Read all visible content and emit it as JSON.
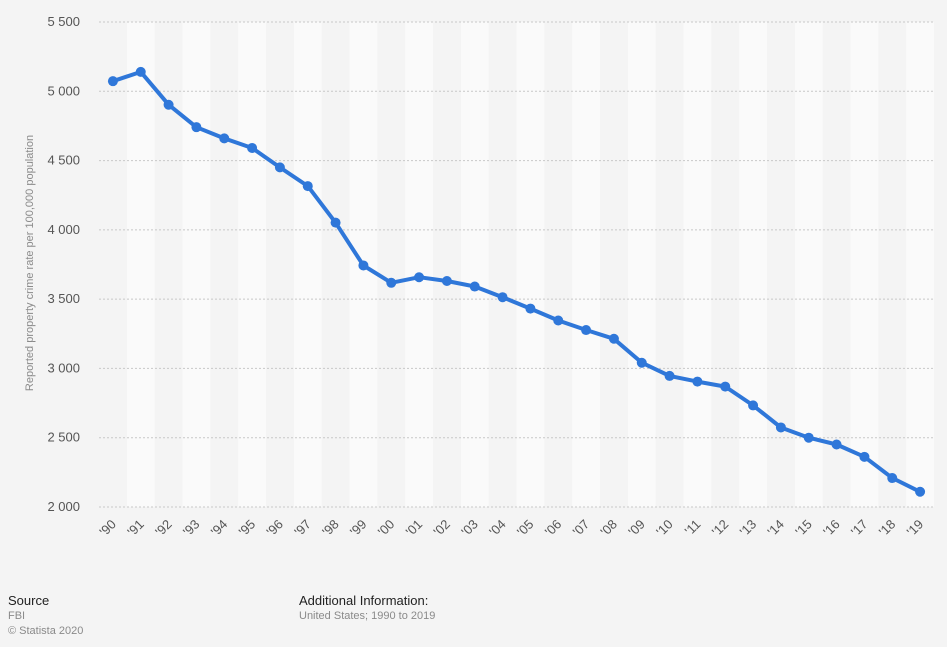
{
  "chart_data": {
    "type": "line",
    "title": "",
    "xlabel": "",
    "ylabel": "Reported property crime rate per 100,000 population",
    "categories": [
      "'90",
      "'91",
      "'92",
      "'93",
      "'94",
      "'95",
      "'96",
      "'97",
      "'98",
      "'99",
      "'00",
      "'01",
      "'02",
      "'03",
      "'04",
      "'05",
      "'06",
      "'07",
      "'08",
      "'09",
      "'10",
      "'11",
      "'12",
      "'13",
      "'14",
      "'15",
      "'16",
      "'17",
      "'18",
      "'19"
    ],
    "series": [
      {
        "values": [
          5073,
          5140,
          4903,
          4741,
          4660,
          4591,
          4451,
          4316,
          4052,
          3743,
          3618,
          3658,
          3631,
          3591,
          3514,
          3432,
          3346,
          3277,
          3214,
          3041,
          2946,
          2905,
          2869,
          2733,
          2574,
          2500,
          2451,
          2362,
          2209,
          2110
        ]
      }
    ],
    "ylim": [
      2000,
      5500
    ],
    "yticks": [
      2000,
      2500,
      3000,
      3500,
      4000,
      4500,
      5000,
      5500
    ],
    "ytick_labels": [
      "2 000",
      "2 500",
      "3 000",
      "3 500",
      "4 000",
      "4 500",
      "5 000",
      "5 500"
    ],
    "grid": true,
    "line_color": "#2f77d9",
    "legend": "none"
  },
  "footer": {
    "source_heading": "Source",
    "source_name": "FBI",
    "copyright": "© Statista 2020",
    "info_heading": "Additional Information:",
    "info_text": "United States; 1990 to 2019"
  }
}
